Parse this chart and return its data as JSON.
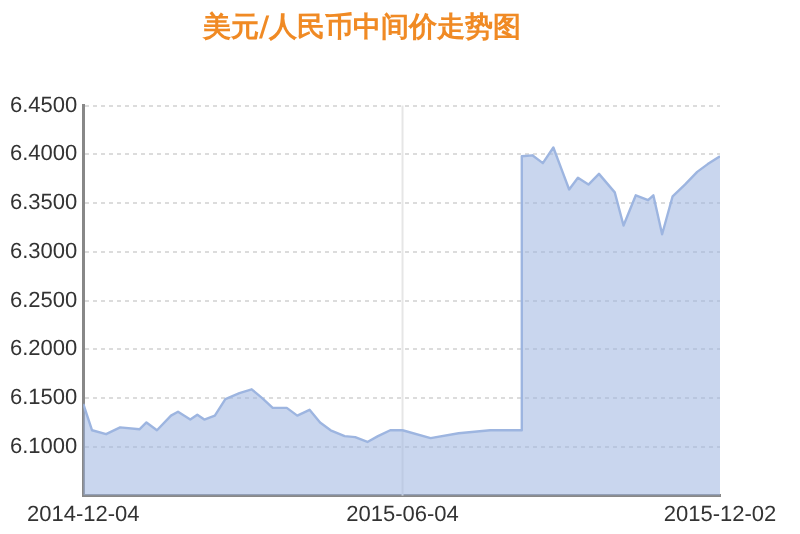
{
  "chart_data": {
    "type": "area",
    "title": "美元/人民币中间价走势图",
    "x": [
      "2014-12-04",
      "2014-12-09",
      "2014-12-17",
      "2014-12-25",
      "2015-01-05",
      "2015-01-09",
      "2015-01-15",
      "2015-01-23",
      "2015-01-27",
      "2015-02-03",
      "2015-02-07",
      "2015-02-11",
      "2015-02-17",
      "2015-02-23",
      "2015-03-03",
      "2015-03-10",
      "2015-03-16",
      "2015-03-22",
      "2015-03-30",
      "2015-04-05",
      "2015-04-12",
      "2015-04-18",
      "2015-04-24",
      "2015-05-02",
      "2015-05-08",
      "2015-05-15",
      "2015-05-21",
      "2015-05-28",
      "2015-06-04",
      "2015-06-20",
      "2015-07-06",
      "2015-07-24",
      "2015-08-10",
      "2015-08-11",
      "2015-08-17",
      "2015-08-23",
      "2015-08-29",
      "2015-09-03",
      "2015-09-07",
      "2015-09-12",
      "2015-09-18",
      "2015-09-24",
      "2015-10-03",
      "2015-10-08",
      "2015-10-15",
      "2015-10-22",
      "2015-10-25",
      "2015-10-30",
      "2015-11-05",
      "2015-11-12",
      "2015-11-19",
      "2015-11-25",
      "2015-12-02"
    ],
    "series": [
      {
        "color": "#9db5e0",
        "values": [
          6.144,
          6.117,
          6.113,
          6.12,
          6.118,
          6.125,
          6.117,
          6.132,
          6.136,
          6.128,
          6.133,
          6.128,
          6.132,
          6.149,
          6.155,
          6.159,
          6.15,
          6.14,
          6.14,
          6.132,
          6.138,
          6.125,
          6.117,
          6.111,
          6.11,
          6.105,
          6.111,
          6.117,
          6.117,
          6.109,
          6.114,
          6.117,
          6.117,
          6.398,
          6.399,
          6.391,
          6.407,
          6.383,
          6.364,
          6.376,
          6.369,
          6.38,
          6.361,
          6.327,
          6.358,
          6.353,
          6.358,
          6.318,
          6.357,
          6.369,
          6.382,
          6.39,
          6.398
        ]
      }
    ],
    "xlim": [
      "2014-12-04",
      "2015-12-02"
    ],
    "xticks": [
      "2014-12-04",
      "2015-06-04",
      "2015-12-02"
    ],
    "ylim": [
      6.05,
      6.45
    ],
    "yticks": [
      {
        "value": 6.1,
        "label": "6.1000"
      },
      {
        "value": 6.15,
        "label": "6.1500"
      },
      {
        "value": 6.2,
        "label": "6.2000"
      },
      {
        "value": 6.25,
        "label": "6.2500"
      },
      {
        "value": 6.3,
        "label": "6.3000"
      },
      {
        "value": 6.35,
        "label": "6.3500"
      },
      {
        "value": 6.4,
        "label": "6.4000"
      },
      {
        "value": 6.45,
        "label": "6.4500"
      }
    ],
    "ref_lines": [
      {
        "axis": "x",
        "value": "2015-06-04",
        "color": "#e6e6e6"
      }
    ],
    "grid": "y",
    "legend": false,
    "marker": "none"
  }
}
